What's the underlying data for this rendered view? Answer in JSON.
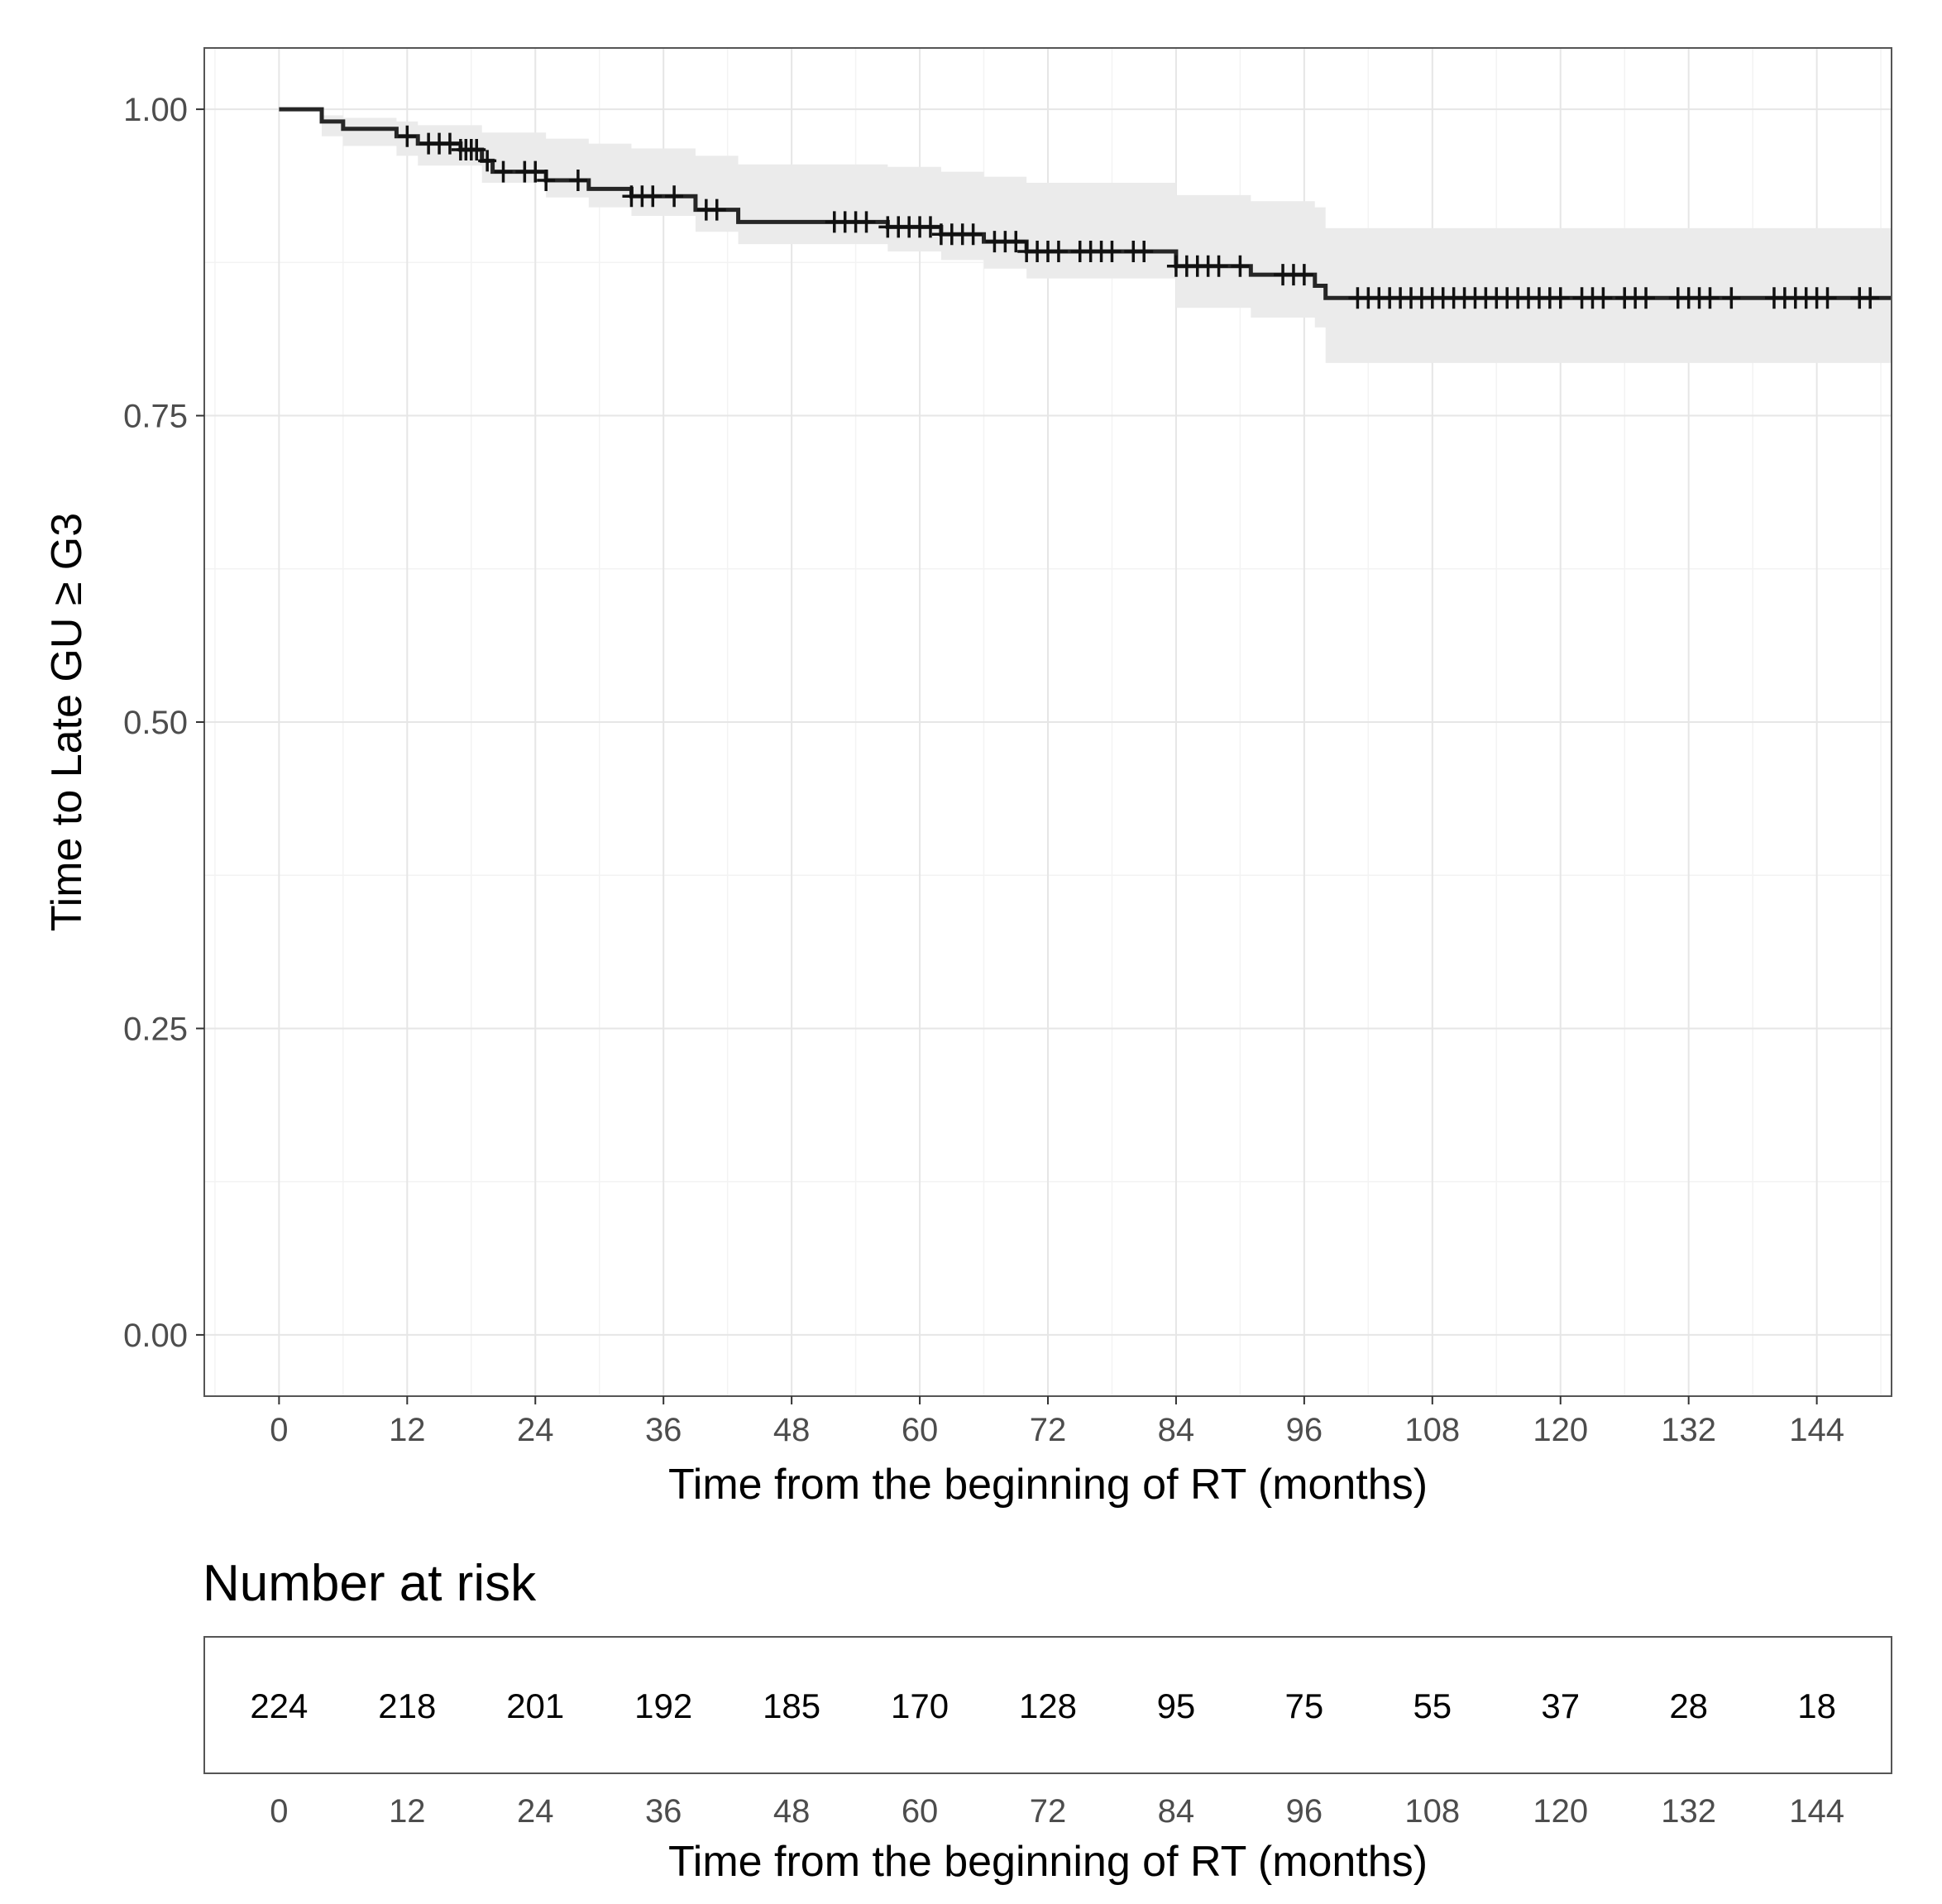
{
  "chart_data": {
    "type": "line",
    "subtype": "kaplan-meier",
    "ylabel": "Time to Late GU ≥ G3",
    "xlabel": "Time from the beginning of RT (months)",
    "xlim": [
      -7,
      151
    ],
    "ylim": [
      -0.05,
      1.05
    ],
    "x_ticks": [
      0,
      12,
      24,
      36,
      48,
      60,
      72,
      84,
      96,
      108,
      120,
      132,
      144
    ],
    "x_tick_labels": [
      "0",
      "12",
      "24",
      "36",
      "48",
      "60",
      "72",
      "84",
      "96",
      "108",
      "120",
      "132",
      "144"
    ],
    "y_ticks": [
      0,
      0.25,
      0.5,
      0.75,
      1.0
    ],
    "y_tick_labels": [
      "0.00",
      "0.25",
      "0.50",
      "0.75",
      "1.00"
    ],
    "grid": true,
    "legend": "none",
    "colors": {
      "curve": "#262626",
      "ci_band": "#ebebeb",
      "grid_major": "#e6e6e6",
      "grid_minor": "#f3f3f3",
      "panel_border": "#555555"
    },
    "survival_steps": [
      [
        0,
        1.0
      ],
      [
        4,
        0.99
      ],
      [
        6,
        0.984
      ],
      [
        11,
        0.978
      ],
      [
        13,
        0.972
      ],
      [
        17,
        0.967
      ],
      [
        19,
        0.958
      ],
      [
        20,
        0.949
      ],
      [
        25,
        0.942
      ],
      [
        29,
        0.935
      ],
      [
        33,
        0.929
      ],
      [
        39,
        0.918
      ],
      [
        43,
        0.908
      ],
      [
        57,
        0.904
      ],
      [
        62,
        0.898
      ],
      [
        66,
        0.892
      ],
      [
        70,
        0.884
      ],
      [
        84,
        0.872
      ],
      [
        91,
        0.865
      ],
      [
        97,
        0.856
      ],
      [
        98,
        0.846
      ],
      [
        150,
        0.846
      ]
    ],
    "ci_steps": [
      [
        0,
        1.0,
        1.0
      ],
      [
        4,
        0.995,
        0.978
      ],
      [
        6,
        0.993,
        0.97
      ],
      [
        11,
        0.99,
        0.962
      ],
      [
        13,
        0.987,
        0.954
      ],
      [
        19,
        0.981,
        0.94
      ],
      [
        25,
        0.976,
        0.928
      ],
      [
        29,
        0.972,
        0.92
      ],
      [
        33,
        0.968,
        0.913
      ],
      [
        39,
        0.962,
        0.9
      ],
      [
        43,
        0.955,
        0.89
      ],
      [
        57,
        0.953,
        0.884
      ],
      [
        62,
        0.949,
        0.877
      ],
      [
        66,
        0.945,
        0.87
      ],
      [
        70,
        0.94,
        0.862
      ],
      [
        84,
        0.93,
        0.838
      ],
      [
        91,
        0.925,
        0.83
      ],
      [
        97,
        0.92,
        0.822
      ],
      [
        98,
        0.903,
        0.793
      ],
      [
        150,
        0.903,
        0.793
      ]
    ],
    "censor_times": [
      12,
      14,
      15,
      16,
      17,
      17.5,
      18,
      18.5,
      19.5,
      21,
      23,
      24,
      25,
      28,
      33,
      34,
      35,
      37,
      40,
      41,
      52,
      53,
      54,
      55,
      57,
      58,
      59,
      60,
      61,
      62,
      63,
      64,
      65,
      67,
      68,
      69,
      70,
      71,
      72,
      73,
      75,
      76,
      77,
      78,
      80,
      81,
      84,
      85,
      86,
      87,
      88,
      90,
      94,
      95,
      96,
      101,
      102,
      103,
      104,
      105,
      106,
      107,
      108,
      109,
      110,
      111,
      112,
      113,
      114,
      115,
      116,
      117,
      118,
      119,
      120,
      122,
      123,
      124,
      126,
      127,
      128,
      131,
      132,
      133,
      134,
      136,
      140,
      141,
      142,
      143,
      144,
      145,
      148,
      149
    ]
  },
  "risk_table": {
    "title": "Number at risk",
    "xlabel": "Time from the beginning of RT (months)",
    "times": [
      0,
      12,
      24,
      36,
      48,
      60,
      72,
      84,
      96,
      108,
      120,
      132,
      144
    ],
    "time_labels": [
      "0",
      "12",
      "24",
      "36",
      "48",
      "60",
      "72",
      "84",
      "96",
      "108",
      "120",
      "132",
      "144"
    ],
    "counts": [
      "224",
      "218",
      "201",
      "192",
      "185",
      "170",
      "128",
      "95",
      "75",
      "55",
      "37",
      "28",
      "18"
    ]
  }
}
